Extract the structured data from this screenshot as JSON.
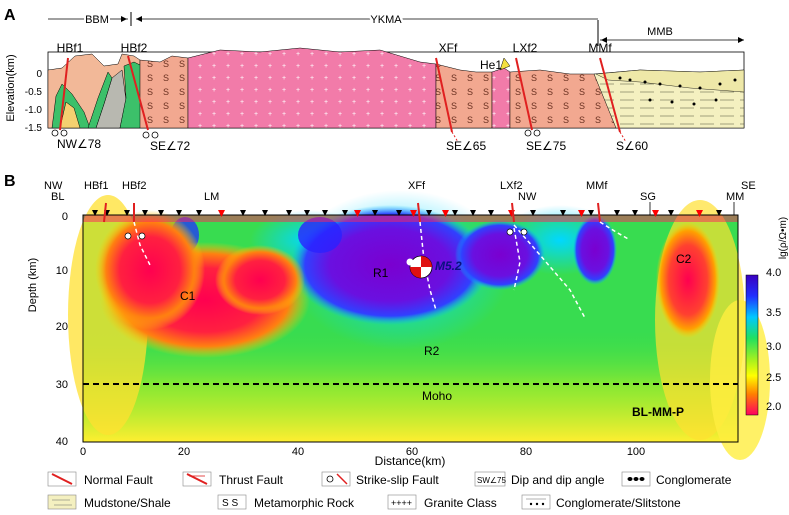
{
  "panel_a": {
    "letter": "A",
    "ylabel": "Elevation(km)",
    "yticks": [
      "0",
      "-0.5",
      "-1.0",
      "-1.5"
    ],
    "zones": [
      "BBM",
      "YKMA",
      "MMB"
    ],
    "faults": [
      "HBf1",
      "HBf2",
      "XFf",
      "He1",
      "LXf2",
      "MMf"
    ],
    "dips": [
      "NW∠78",
      "SE∠72",
      "SE∠65",
      "SE∠75",
      "S∠60"
    ]
  },
  "panel_b": {
    "letter": "B",
    "ylabel": "Depth (km)",
    "xlabel": "Distance(km)",
    "yticks": [
      "0",
      "10",
      "20",
      "30",
      "40"
    ],
    "xticks": [
      "0",
      "20",
      "40",
      "60",
      "80",
      "100"
    ],
    "top_labels": [
      "NW",
      "BL",
      "HBf1",
      "HBf2",
      "LM",
      "XFf",
      "LXf2",
      "NW",
      "MMf",
      "SG",
      "MM",
      "SE"
    ],
    "regions": [
      "R1",
      "C1",
      "R2",
      "C2"
    ],
    "event": "M5.2",
    "moho": "Moho",
    "profile": "BL-MM-P",
    "colorbar": {
      "label": "lg(ρ/Ω•m)",
      "ticks": [
        "4.0",
        "3.5",
        "3.0",
        "2.5",
        "2.0"
      ]
    }
  },
  "legend": [
    "Normal Fault",
    "Thrust Fault",
    "Strike-slip Fault",
    "Dip and dip angle",
    "Conglomerate",
    "Mudstone/Shale",
    "Metamorphic Rock",
    "Granite Class",
    "Conglomerate/Slitstone"
  ],
  "legend_dip_icon": "SW∠75"
}
